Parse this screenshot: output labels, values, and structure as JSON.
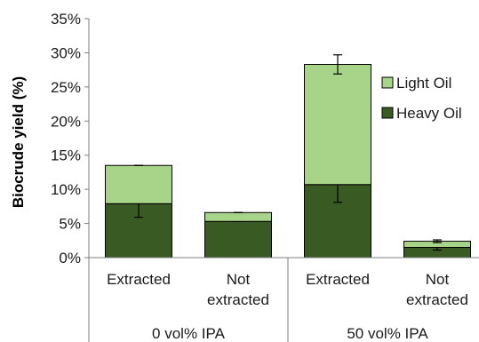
{
  "chart_data": {
    "type": "bar",
    "stacked": true,
    "ylabel": "Biocrude yield (%)",
    "xlabel": "",
    "title": "",
    "ylim": [
      0,
      35
    ],
    "yticks": [
      0,
      5,
      10,
      15,
      20,
      25,
      30,
      35
    ],
    "ytick_labels": [
      "0%",
      "5%",
      "10%",
      "15%",
      "20%",
      "25%",
      "30%",
      "35%"
    ],
    "grid": false,
    "legend_position": "right",
    "categories": [
      {
        "label_line1": "Extracted",
        "label_line2": ""
      },
      {
        "label_line1": "Not",
        "label_line2": "extracted"
      },
      {
        "label_line1": "Extracted",
        "label_line2": ""
      },
      {
        "label_line1": "Not",
        "label_line2": "extracted"
      }
    ],
    "groups": [
      {
        "label": "0 vol% IPA",
        "categories": [
          0,
          1
        ]
      },
      {
        "label": "50 vol% IPA",
        "categories": [
          2,
          3
        ]
      }
    ],
    "series": [
      {
        "name": "Heavy Oil",
        "color": "#3a5a24",
        "values": [
          7.9,
          5.3,
          10.7,
          1.5
        ],
        "errors": [
          2.0,
          0.0,
          2.6,
          0.4
        ]
      },
      {
        "name": "Light Oil",
        "color": "#a8d48a",
        "values": [
          5.6,
          1.3,
          17.6,
          0.9
        ],
        "errors": [
          0.0,
          0.0,
          1.4,
          0.2
        ]
      }
    ],
    "legend_order": [
      "Light Oil",
      "Heavy Oil"
    ]
  }
}
